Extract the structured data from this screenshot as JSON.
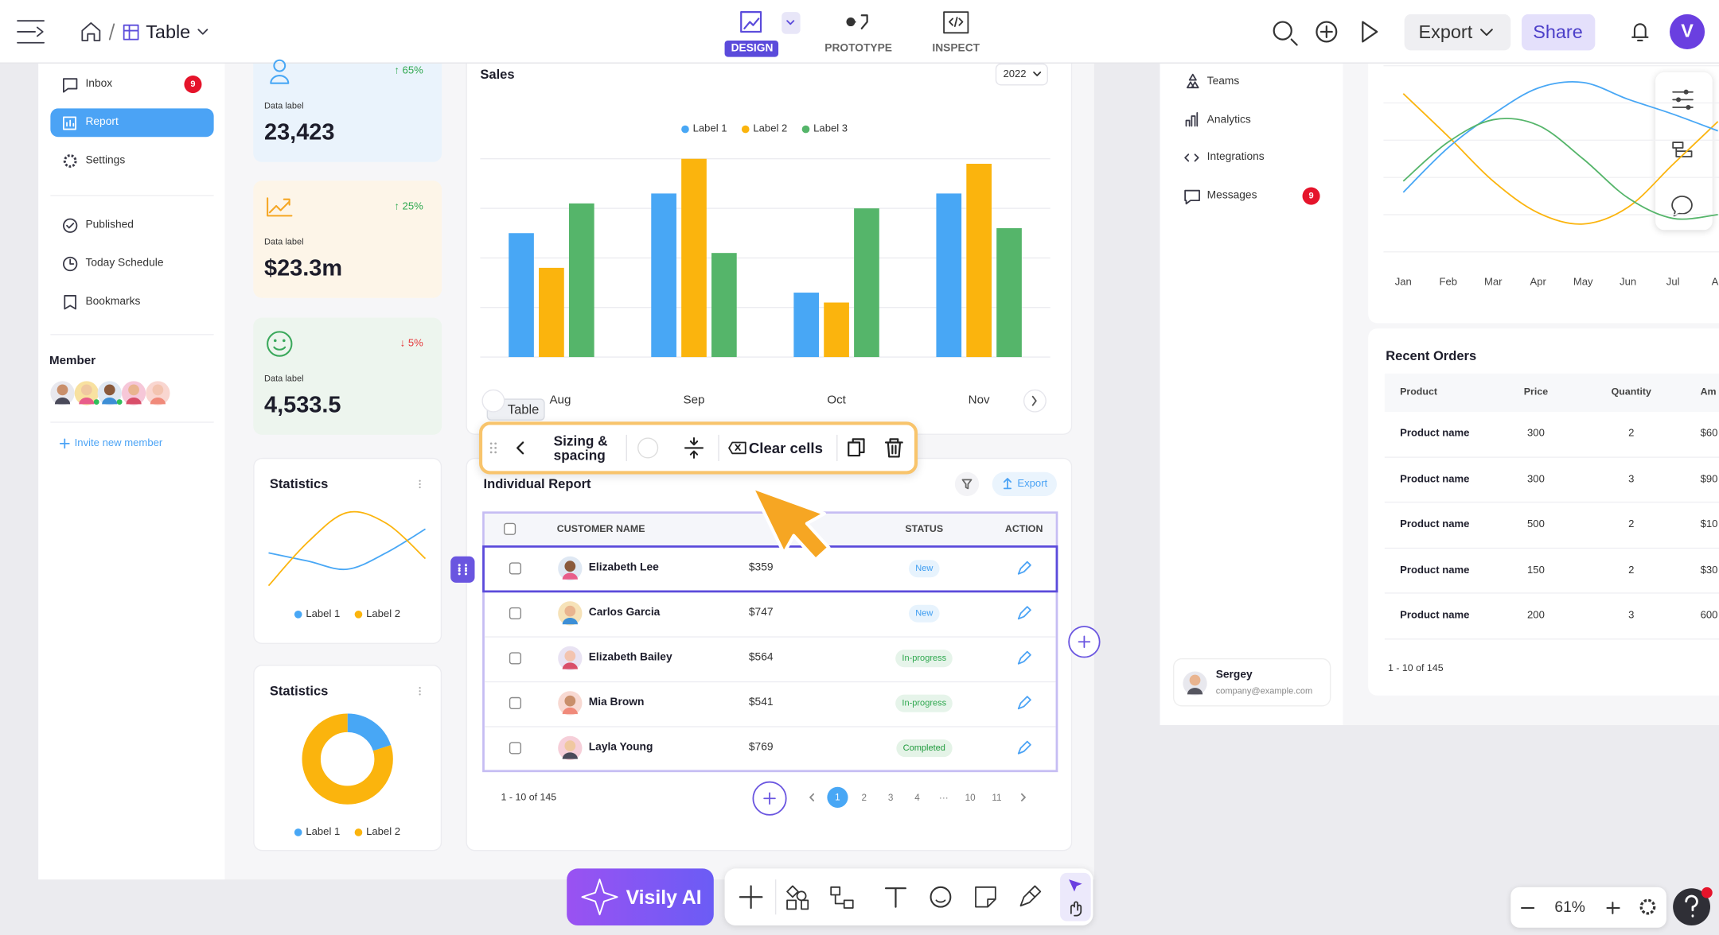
{
  "top_bar": {
    "file_name": "Table",
    "tabs": [
      "DESIGN",
      "PROTOTYPE",
      "INSPECT"
    ],
    "export": "Export",
    "share": "Share",
    "avatar": "V"
  },
  "left_nav": {
    "items": [
      {
        "label": "Inbox",
        "badge": "9"
      },
      {
        "label": "Report"
      },
      {
        "label": "Settings"
      }
    ],
    "more_items": [
      "Published",
      "Today Schedule",
      "Bookmarks"
    ],
    "member_title": "Member",
    "invite": "Invite new member"
  },
  "stat_cards": [
    {
      "change": "↑ 65%",
      "label": "Data label",
      "value": "23,423",
      "color": "#eaf3fc",
      "change_color": "#2fa84f"
    },
    {
      "change": "↑ 25%",
      "label": "Data label",
      "value": "$23.3m",
      "color": "#fdf5e8",
      "change_color": "#2fa84f"
    },
    {
      "change": "↓ 5%",
      "label": "Data label",
      "value": "4,533.5",
      "color": "#edf5ee",
      "change_color": "#e5383b"
    }
  ],
  "chart_data": [
    {
      "type": "bar",
      "title": "Sales",
      "year": "2022",
      "categories": [
        "Aug",
        "Sep",
        "Oct",
        "Nov"
      ],
      "series": [
        {
          "name": "Label 1",
          "color": "#48a7f5",
          "values": [
            2.5,
            3.3,
            1.3,
            3.3
          ]
        },
        {
          "name": "Label 2",
          "color": "#fbb40d",
          "values": [
            1.8,
            4.0,
            1.1,
            3.9
          ]
        },
        {
          "name": "Label 3",
          "color": "#55b56a",
          "values": [
            3.1,
            2.1,
            3.0,
            2.6
          ]
        }
      ],
      "ylim": [
        0,
        4
      ],
      "grid": true
    },
    {
      "type": "line",
      "title": "Statistics",
      "categories": [
        null,
        null,
        null,
        null,
        null
      ],
      "series": [
        {
          "name": "Label 1",
          "color": "#48a7f5",
          "values": [
            47,
            37,
            27,
            47,
            76
          ]
        },
        {
          "name": "Label 2",
          "color": "#fbb40d",
          "values": [
            7,
            60,
            96,
            83,
            40
          ]
        }
      ],
      "ylim": [
        0,
        100
      ]
    },
    {
      "type": "pie",
      "title": "Statistics",
      "donut": true,
      "categories": [
        "Label 1",
        "Label 2"
      ],
      "values": [
        20,
        80
      ],
      "colors": [
        "#48a7f5",
        "#fbb40d"
      ]
    },
    {
      "type": "line",
      "categories": [
        "Jan",
        "Feb",
        "Mar",
        "Apr",
        "May",
        "Jun",
        "Jul",
        "Au"
      ],
      "series": [
        {
          "color": "#fbb40d",
          "values": [
            85,
            62,
            38,
            21,
            15,
            24,
            47,
            70
          ]
        },
        {
          "color": "#48a7f5",
          "values": [
            32,
            56,
            74,
            88,
            91,
            82,
            74,
            65
          ]
        },
        {
          "color": "#55b56a",
          "values": [
            38,
            59,
            71,
            68,
            50,
            29,
            18,
            20
          ]
        }
      ],
      "ylim": [
        0,
        100
      ],
      "grid": true
    }
  ],
  "toolbar": {
    "tag": "Table",
    "sizing": "Sizing & spacing",
    "clear": "Clear cells"
  },
  "report": {
    "title": "Individual Report",
    "export": "Export",
    "columns": [
      "CUSTOMER NAME",
      "STATUS",
      "ACTION"
    ],
    "rows": [
      {
        "name": "Elizabeth Lee",
        "amount": "$359",
        "status": "New",
        "status_color": "#3d9cf0"
      },
      {
        "name": "Carlos Garcia",
        "amount": "$747",
        "status": "New",
        "status_color": "#3d9cf0"
      },
      {
        "name": "Elizabeth Bailey",
        "amount": "$564",
        "status": "In-progress",
        "status_color": "#2fa84f"
      },
      {
        "name": "Mia Brown",
        "amount": "$541",
        "status": "In-progress",
        "status_color": "#2fa84f"
      },
      {
        "name": "Layla Young",
        "amount": "$769",
        "status": "Completed",
        "status_color": "#1f9a3c"
      }
    ],
    "summary": "1 - 10 of 145",
    "pages": [
      "1",
      "2",
      "3",
      "4",
      "···",
      "10",
      "11"
    ]
  },
  "right_nav": {
    "items": [
      {
        "label": "Teams"
      },
      {
        "label": "Analytics"
      },
      {
        "label": "Integrations"
      },
      {
        "label": "Messages",
        "badge": "9"
      }
    ],
    "user": {
      "name": "Sergey",
      "email": "company@example.com"
    }
  },
  "recent_orders": {
    "title": "Recent Orders",
    "columns": [
      "Product",
      "Price",
      "Quantity",
      "Am"
    ],
    "rows": [
      [
        "Product name",
        "300",
        "2",
        "$60"
      ],
      [
        "Product name",
        "300",
        "3",
        "$90"
      ],
      [
        "Product name",
        "500",
        "2",
        "$10"
      ],
      [
        "Product name",
        "150",
        "2",
        "$30"
      ],
      [
        "Product name",
        "200",
        "3",
        "600"
      ]
    ],
    "summary": "1 - 10 of 145"
  },
  "bottom": {
    "ai": "Visily AI",
    "zoom": "61%"
  }
}
